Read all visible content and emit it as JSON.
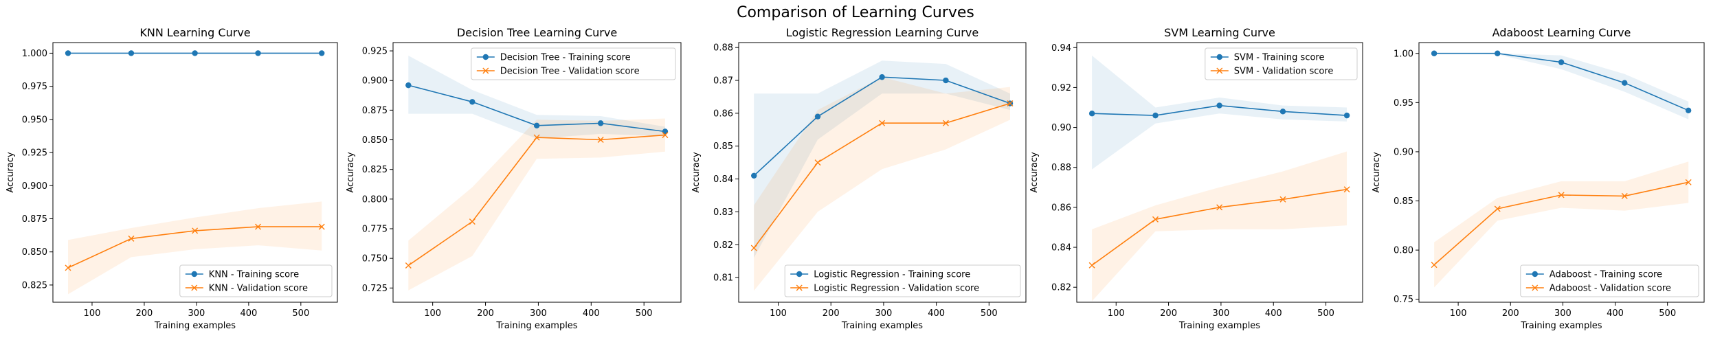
{
  "figure": {
    "suptitle": "Comparison of Learning Curves"
  },
  "colors": {
    "training": "#1f77b4",
    "validation": "#ff7f0e"
  },
  "chart_data": [
    {
      "type": "line",
      "title": "KNN Learning Curve",
      "xlabel": "Training examples",
      "ylabel": "Accuracy",
      "x": [
        54,
        175,
        297,
        418,
        540
      ],
      "xlim": [
        25,
        570
      ],
      "ylim": [
        0.812,
        1.008
      ],
      "xticks": [
        100,
        200,
        300,
        400,
        500
      ],
      "yticks": [
        0.825,
        0.85,
        0.875,
        0.9,
        0.925,
        0.95,
        0.975,
        1.0
      ],
      "ytick_labels": [
        "0.825",
        "0.850",
        "0.875",
        "0.900",
        "0.925",
        "0.950",
        "0.975",
        "1.000"
      ],
      "legend_position": "lower-right",
      "series": [
        {
          "name": "KNN - Training score",
          "marker": "circle",
          "values": [
            1.0,
            1.0,
            1.0,
            1.0,
            1.0
          ],
          "band_lower": [
            1.0,
            1.0,
            1.0,
            1.0,
            1.0
          ],
          "band_upper": [
            1.0,
            1.0,
            1.0,
            1.0,
            1.0
          ]
        },
        {
          "name": "KNN - Validation score",
          "marker": "x",
          "values": [
            0.838,
            0.86,
            0.866,
            0.869,
            0.869
          ],
          "band_lower": [
            0.818,
            0.846,
            0.852,
            0.855,
            0.851
          ],
          "band_upper": [
            0.859,
            0.868,
            0.876,
            0.883,
            0.888
          ]
        }
      ]
    },
    {
      "type": "line",
      "title": "Decision Tree Learning Curve",
      "xlabel": "Training examples",
      "ylabel": "Accuracy",
      "x": [
        54,
        175,
        297,
        418,
        540
      ],
      "xlim": [
        25,
        570
      ],
      "ylim": [
        0.713,
        0.932
      ],
      "xticks": [
        100,
        200,
        300,
        400,
        500
      ],
      "yticks": [
        0.725,
        0.75,
        0.775,
        0.8,
        0.825,
        0.85,
        0.875,
        0.9,
        0.925
      ],
      "ytick_labels": [
        "0.725",
        "0.750",
        "0.775",
        "0.800",
        "0.825",
        "0.850",
        "0.875",
        "0.900",
        "0.925"
      ],
      "legend_position": "upper-right",
      "series": [
        {
          "name": "Decision Tree - Training score",
          "marker": "circle",
          "values": [
            0.896,
            0.882,
            0.862,
            0.864,
            0.857
          ],
          "band_lower": [
            0.872,
            0.872,
            0.851,
            0.855,
            0.853
          ],
          "band_upper": [
            0.921,
            0.892,
            0.871,
            0.87,
            0.861
          ]
        },
        {
          "name": "Decision Tree - Validation score",
          "marker": "x",
          "values": [
            0.744,
            0.781,
            0.852,
            0.85,
            0.854
          ],
          "band_lower": [
            0.723,
            0.752,
            0.834,
            0.835,
            0.84
          ],
          "band_upper": [
            0.765,
            0.81,
            0.867,
            0.866,
            0.868
          ]
        }
      ]
    },
    {
      "type": "line",
      "title": "Logistic Regression Learning Curve",
      "xlabel": "Training examples",
      "ylabel": "Accuracy",
      "x": [
        54,
        175,
        297,
        418,
        540
      ],
      "xlim": [
        25,
        570
      ],
      "ylim": [
        0.8025,
        0.8815
      ],
      "xticks": [
        100,
        200,
        300,
        400,
        500
      ],
      "yticks": [
        0.81,
        0.82,
        0.83,
        0.84,
        0.85,
        0.86,
        0.87,
        0.88
      ],
      "ytick_labels": [
        "0.81",
        "0.82",
        "0.83",
        "0.84",
        "0.85",
        "0.86",
        "0.87",
        "0.88"
      ],
      "legend_position": "lower-right",
      "series": [
        {
          "name": "Logistic Regression - Training score",
          "marker": "circle",
          "values": [
            0.841,
            0.859,
            0.871,
            0.87,
            0.863
          ],
          "band_lower": [
            0.816,
            0.852,
            0.866,
            0.866,
            0.861
          ],
          "band_upper": [
            0.866,
            0.866,
            0.876,
            0.875,
            0.866
          ]
        },
        {
          "name": "Logistic Regression - Validation score",
          "marker": "x",
          "values": [
            0.819,
            0.845,
            0.857,
            0.857,
            0.863
          ],
          "band_lower": [
            0.806,
            0.83,
            0.843,
            0.849,
            0.858
          ],
          "band_upper": [
            0.832,
            0.861,
            0.871,
            0.866,
            0.868
          ]
        }
      ]
    },
    {
      "type": "line",
      "title": "SVM Learning Curve",
      "xlabel": "Training examples",
      "ylabel": "Accuracy",
      "x": [
        54,
        175,
        297,
        418,
        540
      ],
      "xlim": [
        25,
        570
      ],
      "ylim": [
        0.8125,
        0.9425
      ],
      "xticks": [
        100,
        200,
        300,
        400,
        500
      ],
      "yticks": [
        0.82,
        0.84,
        0.86,
        0.88,
        0.9,
        0.92,
        0.94
      ],
      "ytick_labels": [
        "0.82",
        "0.84",
        "0.86",
        "0.88",
        "0.90",
        "0.92",
        "0.94"
      ],
      "legend_position": "upper-right",
      "series": [
        {
          "name": "SVM - Training score",
          "marker": "circle",
          "values": [
            0.907,
            0.906,
            0.911,
            0.908,
            0.906
          ],
          "band_lower": [
            0.879,
            0.902,
            0.907,
            0.904,
            0.903
          ],
          "band_upper": [
            0.936,
            0.91,
            0.915,
            0.911,
            0.91
          ]
        },
        {
          "name": "SVM - Validation score",
          "marker": "x",
          "values": [
            0.831,
            0.854,
            0.86,
            0.864,
            0.869
          ],
          "band_lower": [
            0.813,
            0.848,
            0.849,
            0.849,
            0.851
          ],
          "band_upper": [
            0.849,
            0.861,
            0.87,
            0.878,
            0.888
          ]
        }
      ]
    },
    {
      "type": "line",
      "title": "Adaboost Learning Curve",
      "xlabel": "Training examples",
      "ylabel": "Accuracy",
      "x": [
        54,
        175,
        297,
        418,
        540
      ],
      "xlim": [
        25,
        570
      ],
      "ylim": [
        0.747,
        1.011
      ],
      "xticks": [
        100,
        200,
        300,
        400,
        500
      ],
      "yticks": [
        0.75,
        0.8,
        0.85,
        0.9,
        0.95,
        1.0
      ],
      "ytick_labels": [
        "0.75",
        "0.80",
        "0.85",
        "0.90",
        "0.95",
        "1.00"
      ],
      "legend_position": "lower-right",
      "series": [
        {
          "name": "Adaboost - Training score",
          "marker": "circle",
          "values": [
            1.0,
            1.0,
            0.991,
            0.97,
            0.942
          ],
          "band_lower": [
            1.0,
            0.999,
            0.984,
            0.961,
            0.933
          ],
          "band_upper": [
            1.0,
            1.0,
            0.998,
            0.979,
            0.951
          ]
        },
        {
          "name": "Adaboost - Validation score",
          "marker": "x",
          "values": [
            0.785,
            0.842,
            0.856,
            0.855,
            0.869
          ],
          "band_lower": [
            0.762,
            0.83,
            0.843,
            0.84,
            0.848
          ],
          "band_upper": [
            0.808,
            0.853,
            0.87,
            0.87,
            0.89
          ]
        }
      ]
    }
  ]
}
